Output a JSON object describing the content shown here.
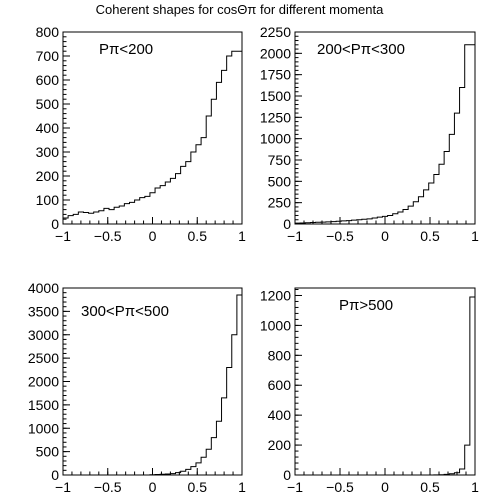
{
  "title": "Coherent shapes for cosΘπ for different momenta",
  "chart_data": [
    {
      "type": "histogram",
      "annotation": "Pπ<200",
      "xlim": [
        -1,
        1
      ],
      "ylim": [
        0,
        800
      ],
      "xticks": [
        -1,
        -0.5,
        0,
        0.5,
        1
      ],
      "xtick_labels": [
        "−1",
        "−0.5",
        "0",
        "0.5",
        "1"
      ],
      "yticks": [
        0,
        100,
        200,
        300,
        400,
        500,
        600,
        700,
        800
      ],
      "values": [
        25,
        35,
        40,
        50,
        48,
        45,
        50,
        55,
        65,
        60,
        70,
        75,
        85,
        90,
        100,
        110,
        115,
        130,
        150,
        160,
        175,
        190,
        210,
        240,
        260,
        300,
        330,
        360,
        450,
        520,
        590,
        640,
        700,
        720,
        720
      ]
    },
    {
      "type": "histogram",
      "annotation": "200<Pπ<300",
      "xlim": [
        -1,
        1
      ],
      "ylim": [
        0,
        2250
      ],
      "xticks": [
        -1,
        -0.5,
        0,
        0.5,
        1
      ],
      "xtick_labels": [
        "−1",
        "−0.5",
        "0",
        "0.5",
        "1"
      ],
      "yticks": [
        0,
        250,
        500,
        750,
        1000,
        1250,
        1500,
        1750,
        2000,
        2250
      ],
      "values": [
        10,
        12,
        15,
        18,
        20,
        22,
        25,
        28,
        32,
        36,
        40,
        45,
        50,
        55,
        60,
        70,
        80,
        90,
        100,
        120,
        140,
        170,
        210,
        260,
        320,
        400,
        480,
        580,
        700,
        850,
        1050,
        1300,
        1600,
        2100,
        2100
      ]
    },
    {
      "type": "histogram",
      "annotation": "300<Pπ<500",
      "xlim": [
        -1,
        1
      ],
      "ylim": [
        0,
        4000
      ],
      "xticks": [
        -1,
        -0.5,
        0,
        0.5,
        1
      ],
      "xtick_labels": [
        "−1",
        "−0.5",
        "0",
        "0.5",
        "1"
      ],
      "yticks": [
        0,
        500,
        1000,
        1500,
        2000,
        2500,
        3000,
        3500,
        4000
      ],
      "values": [
        0,
        0,
        0,
        0,
        0,
        0,
        0,
        0,
        0,
        0,
        0,
        0,
        0,
        0,
        0,
        0,
        0,
        5,
        10,
        15,
        20,
        30,
        50,
        80,
        120,
        180,
        260,
        380,
        550,
        800,
        1150,
        1650,
        2300,
        3000,
        3850
      ]
    },
    {
      "type": "histogram",
      "annotation": "Pπ>500",
      "xlim": [
        -1,
        1
      ],
      "ylim": [
        0,
        1250
      ],
      "xticks": [
        -1,
        -0.5,
        0,
        0.5,
        1
      ],
      "xtick_labels": [
        "−1",
        "−0.5",
        "0",
        "0.5",
        "1"
      ],
      "yticks": [
        0,
        200,
        400,
        600,
        800,
        1000,
        1200
      ],
      "values": [
        0,
        0,
        0,
        0,
        0,
        0,
        0,
        0,
        0,
        0,
        0,
        0,
        0,
        0,
        0,
        0,
        0,
        0,
        0,
        0,
        0,
        0,
        0,
        0,
        0,
        0,
        0,
        1,
        2,
        4,
        8,
        15,
        40,
        200,
        1190
      ]
    }
  ]
}
